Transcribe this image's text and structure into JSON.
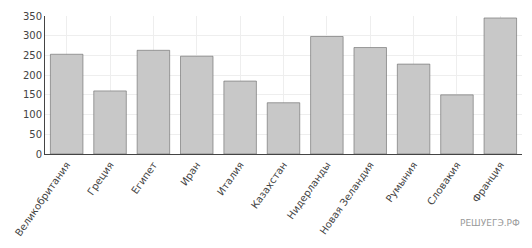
{
  "chart_data": {
    "type": "bar",
    "categories": [
      "Великобритания",
      "Греция",
      "Египет",
      "Иран",
      "Италия",
      "Казахстан",
      "Нидерланды",
      "Новая Зеландия",
      "Румыния",
      "Словакия",
      "Франция"
    ],
    "values": [
      253,
      160,
      263,
      248,
      185,
      130,
      298,
      270,
      228,
      150,
      345
    ],
    "color": "#c8c8c8",
    "ylim": [
      0,
      350
    ],
    "yticks": [
      0,
      50,
      100,
      150,
      200,
      250,
      300,
      350
    ],
    "grid": true,
    "annotations": [
      "РЕШУЕГЭ.РФ"
    ]
  }
}
